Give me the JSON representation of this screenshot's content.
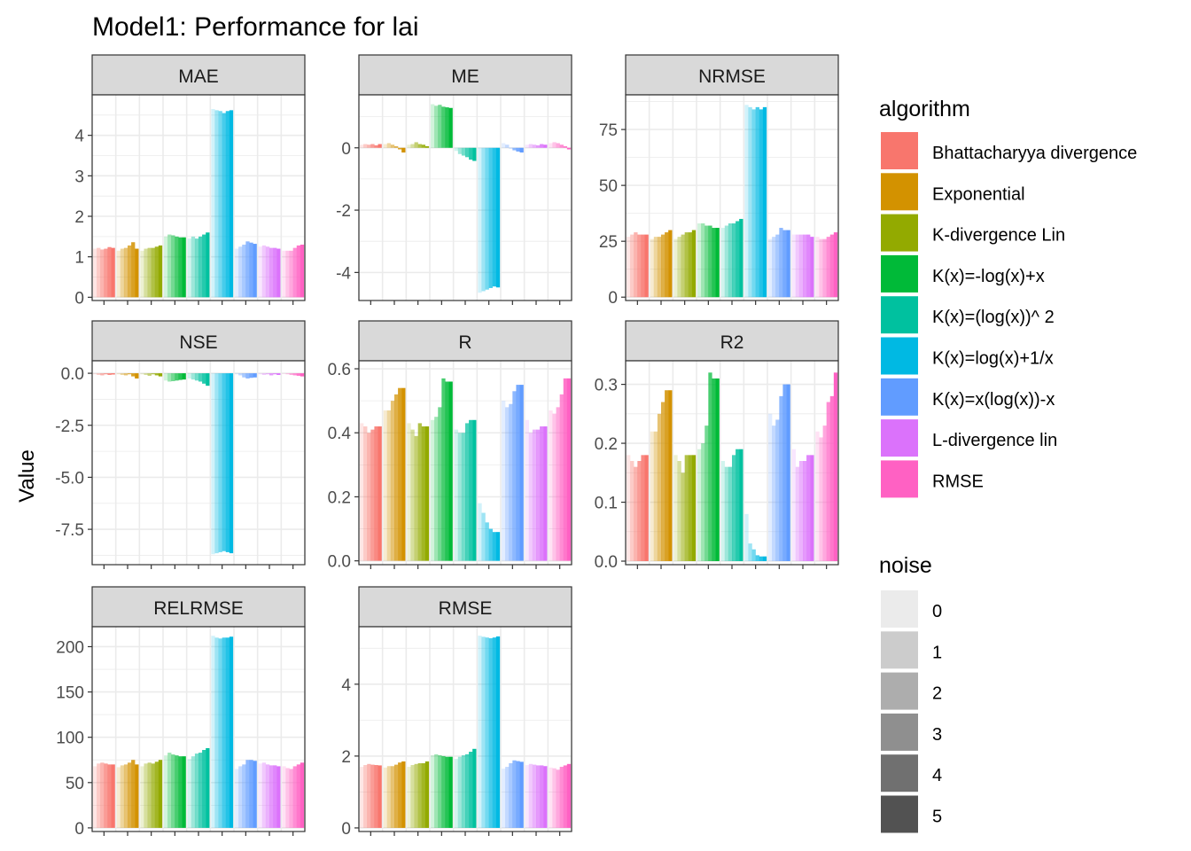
{
  "title": "Model1: Performance for lai",
  "ylabel": "Value",
  "legend": {
    "algorithm_title": "algorithm",
    "noise_title": "noise",
    "algorithms": [
      {
        "name": "Bhattacharyya divergence",
        "color": "#F8766D"
      },
      {
        "name": "Exponential",
        "color": "#D39200"
      },
      {
        "name": "K-divergence Lin",
        "color": "#93AA00"
      },
      {
        "name": "K(x)=-log(x)+x",
        "color": "#00BA38"
      },
      {
        "name": "K(x)=(log(x))^ 2",
        "color": "#00C19F"
      },
      {
        "name": "K(x)=log(x)+1/x",
        "color": "#00B9E3"
      },
      {
        "name": "K(x)=x(log(x))-x",
        "color": "#619CFF"
      },
      {
        "name": "L-divergence lin",
        "color": "#DB72FB"
      },
      {
        "name": "RMSE",
        "color": "#FF61C3"
      }
    ],
    "noise_levels": [
      {
        "label": "0",
        "color": "#EBEBEB"
      },
      {
        "label": "1",
        "color": "#CCCCCC"
      },
      {
        "label": "2",
        "color": "#ADADAD"
      },
      {
        "label": "3",
        "color": "#8F8F8F"
      },
      {
        "label": "4",
        "color": "#707070"
      },
      {
        "label": "5",
        "color": "#525252"
      }
    ]
  },
  "chart_data": {
    "type": "bar",
    "grouping": "algorithm x noise (0-5), noise shown by transparency",
    "categories": [
      "Bhattacharyya divergence",
      "Exponential",
      "K-divergence Lin",
      "K(x)=-log(x)+x",
      "K(x)=(log(x))^ 2",
      "K(x)=log(x)+1/x",
      "K(x)=x(log(x))-x",
      "L-divergence lin",
      "RMSE"
    ],
    "noise": [
      0,
      1,
      2,
      3,
      4,
      5
    ],
    "facets": [
      {
        "name": "MAE",
        "ylim": [
          -0.08,
          5.0
        ],
        "ticks": [
          0,
          1,
          2,
          3,
          4
        ],
        "values": [
          [
            1.2,
            1.22,
            1.18,
            1.2,
            1.24,
            1.22
          ],
          [
            1.15,
            1.2,
            1.22,
            1.28,
            1.36,
            1.2
          ],
          [
            1.15,
            1.2,
            1.22,
            1.22,
            1.25,
            1.28
          ],
          [
            1.5,
            1.55,
            1.53,
            1.5,
            1.48,
            1.48
          ],
          [
            1.45,
            1.5,
            1.45,
            1.5,
            1.55,
            1.6
          ],
          [
            4.65,
            4.62,
            4.6,
            4.55,
            4.6,
            4.62
          ],
          [
            1.2,
            1.25,
            1.3,
            1.38,
            1.35,
            1.32
          ],
          [
            1.25,
            1.28,
            1.25,
            1.22,
            1.22,
            1.2
          ],
          [
            1.15,
            1.15,
            1.15,
            1.22,
            1.28,
            1.3
          ]
        ]
      },
      {
        "name": "ME",
        "ylim": [
          -4.9,
          1.7
        ],
        "ticks": [
          0,
          -2,
          -4
        ],
        "values": [
          [
            0.1,
            0.12,
            0.1,
            0.12,
            0.08,
            0.12
          ],
          [
            0.12,
            0.15,
            0.1,
            0.05,
            -0.05,
            -0.15
          ],
          [
            0.1,
            0.12,
            0.18,
            0.12,
            0.1,
            0.05
          ],
          [
            1.4,
            1.35,
            1.38,
            1.32,
            1.3,
            1.28
          ],
          [
            -0.1,
            -0.2,
            -0.25,
            -0.3,
            -0.38,
            -0.42
          ],
          [
            -4.65,
            -4.6,
            -4.55,
            -4.5,
            -4.45,
            -4.48
          ],
          [
            0.15,
            0.1,
            -0.02,
            -0.08,
            -0.12,
            -0.15
          ],
          [
            0.1,
            0.12,
            0.1,
            0.08,
            0.12,
            0.1
          ],
          [
            0.15,
            0.18,
            0.15,
            0.1,
            0.05,
            -0.05
          ]
        ]
      },
      {
        "name": "NRMSE",
        "ylim": [
          -1.5,
          90.5
        ],
        "ticks": [
          0,
          25,
          50,
          75
        ],
        "values": [
          [
            27,
            28,
            29,
            28,
            28,
            28
          ],
          [
            26,
            27,
            27,
            28,
            29,
            30
          ],
          [
            26,
            27,
            28,
            29,
            29,
            30
          ],
          [
            33,
            33,
            32,
            32,
            31,
            31
          ],
          [
            31,
            32,
            33,
            33,
            34,
            35
          ],
          [
            86,
            85,
            84,
            85,
            84,
            85
          ],
          [
            26,
            27,
            28,
            31,
            30,
            30
          ],
          [
            28,
            28,
            28,
            28,
            28,
            27
          ],
          [
            27,
            26,
            26,
            27,
            28,
            29
          ]
        ]
      },
      {
        "name": "NSE",
        "ylim": [
          -9.2,
          0.6
        ],
        "ticks": [
          0.0,
          -2.5,
          -5.0,
          -7.5
        ],
        "values": [
          [
            -0.05,
            -0.08,
            -0.1,
            -0.05,
            -0.08,
            -0.06
          ],
          [
            -0.05,
            -0.08,
            -0.1,
            -0.05,
            -0.15,
            -0.25
          ],
          [
            -0.05,
            -0.08,
            -0.12,
            -0.05,
            -0.1,
            -0.15
          ],
          [
            -0.35,
            -0.4,
            -0.38,
            -0.35,
            -0.32,
            -0.3
          ],
          [
            -0.25,
            -0.3,
            -0.35,
            -0.4,
            -0.5,
            -0.6
          ],
          [
            -8.7,
            -8.65,
            -8.6,
            -8.55,
            -8.6,
            -8.65
          ],
          [
            -0.05,
            -0.1,
            -0.2,
            -0.25,
            -0.22,
            -0.2
          ],
          [
            -0.05,
            -0.08,
            -0.05,
            -0.1,
            -0.05,
            -0.08
          ],
          [
            -0.02,
            -0.05,
            -0.08,
            -0.1,
            -0.12,
            -0.15
          ]
        ]
      },
      {
        "name": "R",
        "ylim": [
          -0.012,
          0.625
        ],
        "ticks": [
          0.0,
          0.2,
          0.4,
          0.6
        ],
        "values": [
          [
            0.43,
            0.42,
            0.4,
            0.41,
            0.42,
            0.42
          ],
          [
            0.47,
            0.47,
            0.5,
            0.52,
            0.54,
            0.54
          ],
          [
            0.43,
            0.41,
            0.39,
            0.43,
            0.42,
            0.42
          ],
          [
            0.44,
            0.45,
            0.48,
            0.57,
            0.56,
            0.56
          ],
          [
            0.41,
            0.4,
            0.4,
            0.43,
            0.44,
            0.44
          ],
          [
            0.18,
            0.15,
            0.12,
            0.1,
            0.09,
            0.09
          ],
          [
            0.5,
            0.48,
            0.49,
            0.53,
            0.55,
            0.55
          ],
          [
            0.44,
            0.4,
            0.41,
            0.41,
            0.42,
            0.42
          ],
          [
            0.47,
            0.46,
            0.48,
            0.52,
            0.57,
            0.57
          ]
        ]
      },
      {
        "name": "R2",
        "ylim": [
          -0.006,
          0.34
        ],
        "ticks": [
          0.0,
          0.1,
          0.2,
          0.3
        ],
        "values": [
          [
            0.18,
            0.17,
            0.16,
            0.17,
            0.18,
            0.18
          ],
          [
            0.22,
            0.22,
            0.25,
            0.27,
            0.29,
            0.29
          ],
          [
            0.18,
            0.17,
            0.15,
            0.18,
            0.18,
            0.18
          ],
          [
            0.19,
            0.2,
            0.23,
            0.32,
            0.31,
            0.31
          ],
          [
            0.17,
            0.16,
            0.16,
            0.18,
            0.19,
            0.19
          ],
          [
            0.08,
            0.03,
            0.02,
            0.01,
            0.008,
            0.008
          ],
          [
            0.25,
            0.23,
            0.24,
            0.28,
            0.3,
            0.3
          ],
          [
            0.19,
            0.16,
            0.17,
            0.17,
            0.18,
            0.18
          ],
          [
            0.22,
            0.21,
            0.23,
            0.27,
            0.28,
            0.32
          ]
        ]
      },
      {
        "name": "RELRMSE",
        "ylim": [
          -4.0,
          222.0
        ],
        "ticks": [
          0,
          50,
          100,
          150,
          200
        ],
        "values": [
          [
            68,
            71,
            72,
            71,
            70,
            70
          ],
          [
            67,
            69,
            70,
            72,
            75,
            70
          ],
          [
            68,
            71,
            72,
            71,
            73,
            75
          ],
          [
            80,
            83,
            81,
            80,
            79,
            79
          ],
          [
            76,
            79,
            82,
            83,
            86,
            88
          ],
          [
            212,
            210,
            209,
            210,
            210,
            211
          ],
          [
            65,
            68,
            70,
            75,
            75,
            74
          ],
          [
            71,
            72,
            70,
            69,
            69,
            68
          ],
          [
            68,
            66,
            65,
            68,
            70,
            72
          ]
        ]
      },
      {
        "name": "RMSE",
        "ylim": [
          -0.1,
          5.6
        ],
        "ticks": [
          0,
          2,
          4
        ],
        "values": [
          [
            1.7,
            1.75,
            1.78,
            1.76,
            1.75,
            1.74
          ],
          [
            1.68,
            1.72,
            1.72,
            1.76,
            1.82,
            1.85
          ],
          [
            1.7,
            1.75,
            1.78,
            1.8,
            1.8,
            1.85
          ],
          [
            2.02,
            2.05,
            2.02,
            2.0,
            1.98,
            1.98
          ],
          [
            1.92,
            1.98,
            2.02,
            2.05,
            2.12,
            2.2
          ],
          [
            5.35,
            5.32,
            5.3,
            5.28,
            5.3,
            5.33
          ],
          [
            1.65,
            1.7,
            1.8,
            1.88,
            1.86,
            1.84
          ],
          [
            1.75,
            1.78,
            1.76,
            1.74,
            1.74,
            1.72
          ],
          [
            1.68,
            1.66,
            1.62,
            1.7,
            1.74,
            1.78
          ]
        ]
      }
    ]
  }
}
